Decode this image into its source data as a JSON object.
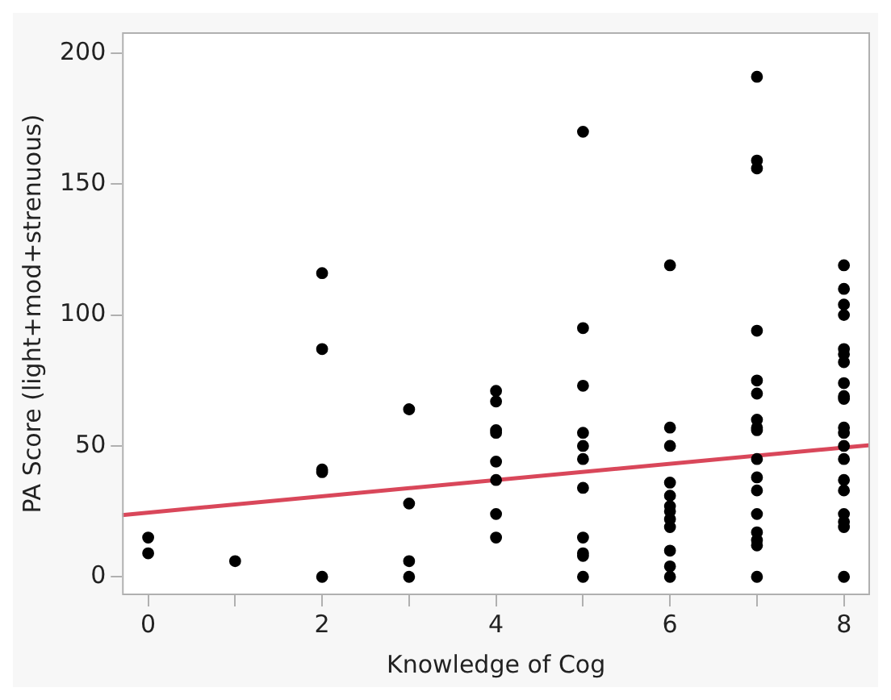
{
  "chart_data": {
    "type": "scatter",
    "xlabel": "Knowledge of Cog",
    "ylabel": "PA Score (light+mod+strenuous)",
    "xlim": [
      -0.3,
      8.3
    ],
    "ylim": [
      -7,
      208
    ],
    "xticks": [
      0,
      {
        "value": 1,
        "label": null
      },
      2,
      {
        "value": 3,
        "label": null
      },
      4,
      {
        "value": 5,
        "label": null
      },
      6,
      {
        "value": 7,
        "label": null
      },
      8
    ],
    "yticks": [
      0,
      50,
      100,
      150,
      200
    ],
    "series": [
      {
        "type": "scatter",
        "color": "#000000",
        "marker": "circle",
        "x": [
          0,
          0,
          1,
          2,
          2,
          2,
          2,
          2,
          3,
          3,
          3,
          3,
          4,
          4,
          4,
          4,
          4,
          4,
          4,
          4,
          5,
          5,
          5,
          5,
          5,
          5,
          5,
          5,
          5,
          5,
          5,
          6,
          6,
          6,
          6,
          6,
          6,
          6,
          6,
          6,
          6,
          6,
          6,
          7,
          7,
          7,
          7,
          7,
          7,
          7,
          7,
          7,
          7,
          7,
          7,
          7,
          7,
          7,
          7,
          7,
          8,
          8,
          8,
          8,
          8,
          8,
          8,
          8,
          8,
          8,
          8,
          8,
          8,
          8,
          8,
          8,
          8,
          8,
          8,
          8
        ],
        "values": [
          15,
          9,
          6,
          116,
          87,
          41,
          40,
          0,
          64,
          28,
          6,
          0,
          71,
          67,
          56,
          55,
          44,
          37,
          24,
          15,
          170,
          95,
          73,
          55,
          50,
          45,
          34,
          15,
          9,
          8,
          0,
          119,
          57,
          50,
          36,
          31,
          27,
          25,
          22,
          19,
          10,
          4,
          0,
          191,
          159,
          156,
          94,
          75,
          70,
          60,
          57,
          56,
          45,
          38,
          33,
          24,
          17,
          14,
          12,
          0,
          119,
          110,
          104,
          100,
          87,
          85,
          82,
          74,
          69,
          68,
          57,
          55,
          50,
          45,
          37,
          33,
          24,
          21,
          19,
          0
        ]
      },
      {
        "type": "line",
        "color": "#d9475a",
        "marker": "none",
        "x": [
          -0.3,
          8.3
        ],
        "values": [
          23.6,
          50.3
        ]
      }
    ]
  }
}
